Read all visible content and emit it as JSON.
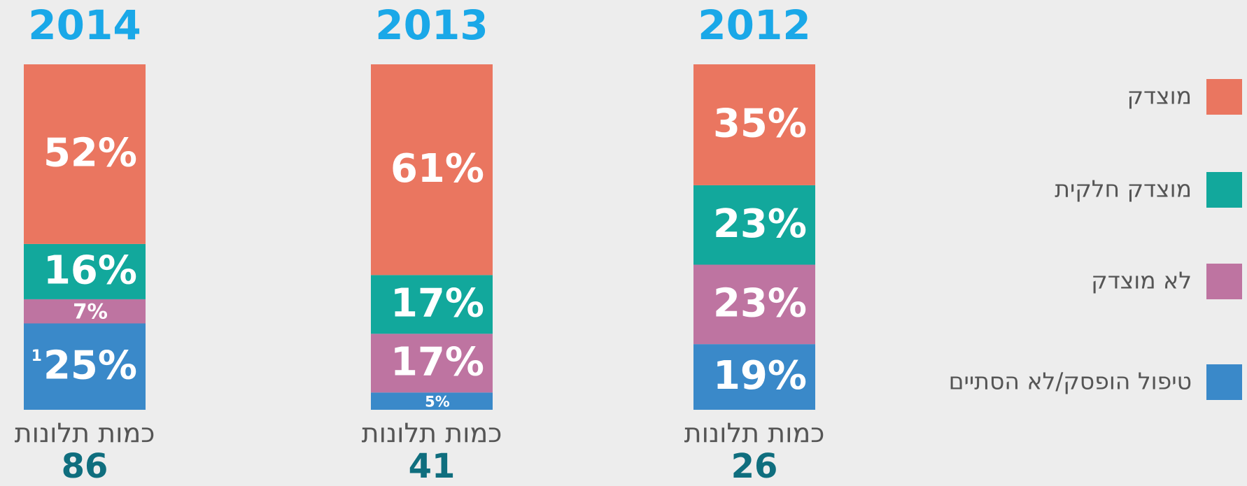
{
  "chart_data": {
    "type": "stacked-bar",
    "categories": [
      "2014",
      "2013",
      "2012"
    ],
    "ylim": [
      0,
      100
    ],
    "series": [
      {
        "name": "טיפול הופסק/לא הסתיים",
        "color": "#3a89c9",
        "values": [
          25,
          5,
          19
        ],
        "value_labels": [
          "25%",
          "5%",
          "19%"
        ]
      },
      {
        "name": "לא מוצדק",
        "color": "#be74a1",
        "values": [
          7,
          17,
          23
        ],
        "value_labels": [
          "7%",
          "17%",
          "23%"
        ]
      },
      {
        "name": "מוצדק חלקית",
        "color": "#12a89c",
        "values": [
          16,
          17,
          23
        ],
        "value_labels": [
          "16%",
          "17%",
          "23%"
        ]
      },
      {
        "name": "מוצדק",
        "color": "#ea7660",
        "values": [
          52,
          61,
          35
        ],
        "value_labels": [
          "52%",
          "61%",
          "35%"
        ]
      }
    ],
    "annotations": [
      {
        "text": "1"
      }
    ],
    "counts_label": "כמות תלונות",
    "counts": [
      86,
      41,
      26
    ]
  }
}
